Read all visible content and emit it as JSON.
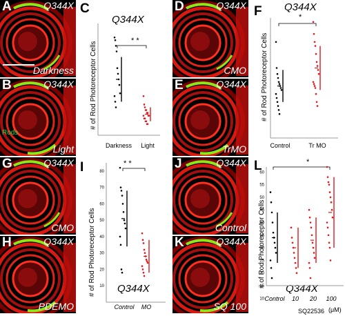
{
  "panels": {
    "A": {
      "label": "A",
      "genotype": "Q344X",
      "condition": "Darkness"
    },
    "B": {
      "label": "B",
      "genotype": "Q344X",
      "condition": "Light",
      "stain_label": "Rods"
    },
    "D": {
      "label": "D",
      "genotype": "Q344X",
      "condition": "CMO"
    },
    "E": {
      "label": "E",
      "genotype": "Q344X",
      "condition": "TrMO"
    },
    "G": {
      "label": "G",
      "genotype": "Q344X",
      "condition": "CMO"
    },
    "H": {
      "label": "H",
      "genotype": "Q344X",
      "condition": "PDEMO"
    },
    "J": {
      "label": "J",
      "genotype": "Q344X",
      "condition": "Control"
    },
    "K": {
      "label": "K",
      "genotype": "Q344X",
      "condition": "SQ 100"
    }
  },
  "charts": {
    "C": {
      "label": "C",
      "title": "Q344X",
      "ylabel": "# of Rod Photoreceptor Cells",
      "sig": "* *"
    },
    "F": {
      "label": "F",
      "title": "Q344X",
      "ylabel": "# of Rod Photoreceptor Cells",
      "sig": "*"
    },
    "I": {
      "label": "I",
      "title": "Q344X",
      "ylabel": "# of Rod Photoreceptor Cells",
      "sig": "* *"
    },
    "L": {
      "label": "L",
      "title": "Q344X",
      "ylabel": "# of Rod Photoreceptor Cells",
      "sig": "*",
      "xaxis_title": "SQ22536",
      "xaxis_unit": "(μM)"
    }
  },
  "chart_data": [
    {
      "type": "scatter",
      "panel": "C",
      "title": "Q344X",
      "ylabel": "# of Rod Photoreceptor Cells",
      "categories": [
        "Darkness",
        "Light"
      ],
      "ylim": [
        0,
        40
      ],
      "series": [
        {
          "values": [
            35,
            34,
            32,
            30,
            24,
            22,
            20,
            18,
            15,
            14,
            12,
            10
          ],
          "color": "#000000"
        },
        {
          "values": [
            14,
            11,
            10,
            9,
            9,
            8,
            8,
            7,
            7,
            7,
            6,
            6,
            5,
            5,
            4,
            4
          ],
          "color": "#e0161b"
        }
      ],
      "error_bars": [
        [
          12,
          28
        ],
        [
          5,
          10
        ]
      ],
      "significance": "**"
    },
    {
      "type": "scatter",
      "panel": "F",
      "title": "Q344X",
      "ylabel": "# of Rod Photoreceptor Cells",
      "categories": [
        "Control",
        "Tr MO"
      ],
      "ylim": [
        0,
        60
      ],
      "series": [
        {
          "values": [
            48,
            35,
            32,
            30,
            28,
            27,
            26,
            25,
            24,
            22,
            20,
            18,
            16,
            14,
            12
          ],
          "color": "#000000"
        },
        {
          "values": [
            58,
            52,
            48,
            46,
            42,
            38,
            36,
            34,
            32,
            28,
            27,
            26,
            25,
            22,
            18,
            16
          ],
          "color": "#e0161b"
        }
      ],
      "error_bars": [
        [
          18,
          34
        ],
        [
          24,
          46
        ]
      ],
      "significance": "*"
    },
    {
      "type": "scatter",
      "panel": "I",
      "title": "Q344X",
      "ylabel": "# of Rod Photoreceptor Cells",
      "categories": [
        "Control",
        "MO"
      ],
      "y_ticks": [
        10,
        20,
        30,
        40,
        50,
        60,
        70,
        80
      ],
      "ylim": [
        0,
        85
      ],
      "series": [
        {
          "values": [
            82,
            70,
            68,
            65,
            60,
            55,
            50,
            48,
            45,
            40,
            35,
            20,
            18
          ],
          "color": "#000000"
        },
        {
          "values": [
            42,
            38,
            36,
            32,
            30,
            28,
            26,
            25,
            24,
            22,
            20,
            18,
            16
          ],
          "color": "#e0161b"
        }
      ],
      "error_bars": [
        [
          34,
          68
        ],
        [
          18,
          38
        ]
      ],
      "significance": "**"
    },
    {
      "type": "scatter",
      "panel": "L",
      "title": "Q344X",
      "ylabel": "# of Rod Photoreceptor Cells",
      "categories": [
        "Control",
        "10",
        "20",
        "100"
      ],
      "xlabel": "SQ22536",
      "xunit": "(μM)",
      "y_ticks": [
        10,
        15,
        20,
        25,
        30,
        35,
        40,
        45,
        50,
        55,
        60
      ],
      "ylim": [
        15,
        62
      ],
      "series": [
        {
          "values": [
            52,
            48,
            44,
            40,
            36,
            34,
            32,
            30,
            28,
            25,
            22,
            18
          ],
          "color": "#000000"
        },
        {
          "values": [
            38,
            34,
            32,
            30,
            28,
            26,
            24,
            22,
            20
          ],
          "color": "#e0161b"
        },
        {
          "values": [
            45,
            42,
            40,
            38,
            35,
            32,
            30,
            28,
            26,
            24,
            22,
            18
          ],
          "color": "#e0161b"
        },
        {
          "values": [
            62,
            58,
            56,
            55,
            52,
            50,
            48,
            45,
            42,
            40,
            38,
            35,
            32,
            30,
            25
          ],
          "color": "#e0161b"
        }
      ],
      "error_bars": [
        [
          24,
          44
        ],
        [
          22,
          38
        ],
        [
          24,
          42
        ],
        [
          30,
          58
        ]
      ],
      "significance": "*"
    }
  ]
}
